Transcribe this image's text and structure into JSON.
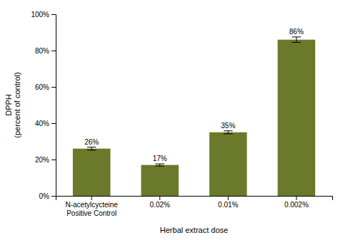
{
  "chart_data": {
    "type": "bar",
    "categories": [
      "N-acetylcycteine\nPositive Control",
      "0.02%",
      "0.01%",
      "0.002%"
    ],
    "values": [
      26,
      17,
      35,
      86
    ],
    "errors": [
      0.8,
      0.6,
      0.8,
      1.5
    ],
    "value_labels": [
      "26%",
      "17%",
      "35%",
      "86%"
    ],
    "data_labels": true,
    "color": "#6B7A2A",
    "xlabel": "Herbal extract dose",
    "ylabel": "DPPH\n(percent of control)",
    "ylim": [
      0,
      100
    ],
    "yticks": [
      {
        "value": 0,
        "label": "0%"
      },
      {
        "value": 20,
        "label": "20%"
      },
      {
        "value": 40,
        "label": "40%"
      },
      {
        "value": 60,
        "label": "60%"
      },
      {
        "value": 80,
        "label": "80%"
      },
      {
        "value": 100,
        "label": "100%"
      }
    ],
    "grid": false
  }
}
